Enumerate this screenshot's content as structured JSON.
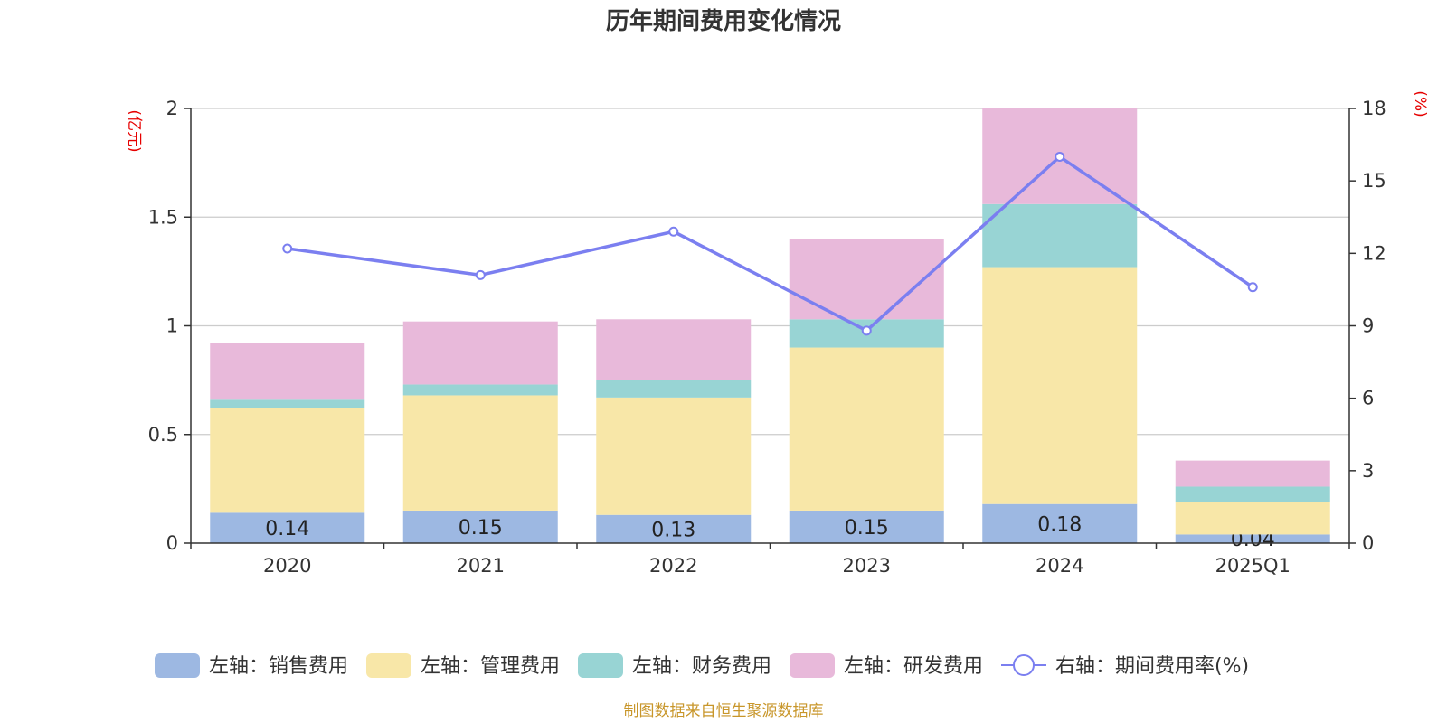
{
  "chart_data": {
    "type": "bar",
    "title": "历年期间费用变化情况",
    "left_unit": "(亿元)",
    "right_unit": "(%)",
    "categories": [
      "2020",
      "2021",
      "2022",
      "2023",
      "2024",
      "2025Q1"
    ],
    "left_axis": {
      "min": 0,
      "max": 2,
      "ticks": [
        "0",
        "0.5",
        "1",
        "1.5",
        "2"
      ]
    },
    "right_axis": {
      "min": 0,
      "max": 18,
      "ticks": [
        "0",
        "3",
        "6",
        "9",
        "12",
        "15",
        "18"
      ]
    },
    "series": [
      {
        "name": "左轴：销售费用",
        "type": "bar",
        "axis": "left",
        "color": "#9db8e2",
        "values": [
          0.14,
          0.15,
          0.13,
          0.15,
          0.18,
          0.04
        ],
        "labels": [
          "0.14",
          "0.15",
          "0.13",
          "0.15",
          "0.18",
          "0.04"
        ]
      },
      {
        "name": "左轴：管理费用",
        "type": "bar",
        "axis": "left",
        "color": "#f8e7a8",
        "values": [
          0.48,
          0.53,
          0.54,
          0.75,
          1.09,
          0.15
        ]
      },
      {
        "name": "左轴：财务费用",
        "type": "bar",
        "axis": "left",
        "color": "#98d4d4",
        "values": [
          0.04,
          0.05,
          0.08,
          0.13,
          0.29,
          0.07
        ]
      },
      {
        "name": "左轴：研发费用",
        "type": "bar",
        "axis": "left",
        "color": "#e8b9da",
        "values": [
          0.26,
          0.29,
          0.28,
          0.37,
          0.44,
          0.12
        ]
      },
      {
        "name": "右轴：期间费用率(%)",
        "type": "line",
        "axis": "right",
        "color": "#7b7ff0",
        "values": [
          12.2,
          11.1,
          12.9,
          8.8,
          16.0,
          10.6
        ]
      }
    ],
    "grid": true,
    "legend_position": "bottom"
  },
  "source_note": "制图数据来自恒生聚源数据库"
}
